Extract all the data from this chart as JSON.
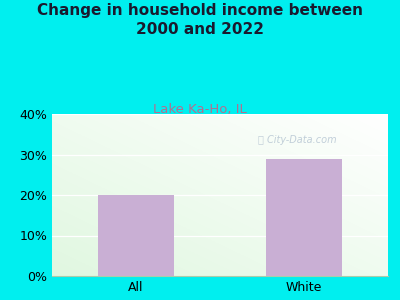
{
  "title": "Change in household income between\n2000 and 2022",
  "subtitle": "Lake Ka-Ho, IL",
  "categories": [
    "All",
    "White"
  ],
  "values": [
    20,
    29
  ],
  "bar_color": "#c9afd4",
  "title_fontsize": 11,
  "subtitle_fontsize": 9.5,
  "subtitle_color": "#b07090",
  "tick_label_fontsize": 9,
  "ylim": [
    0,
    40
  ],
  "yticks": [
    0,
    10,
    20,
    30,
    40
  ],
  "ytick_labels": [
    "0%",
    "10%",
    "20%",
    "30%",
    "40%"
  ],
  "background_outer": "#00efef",
  "watermark": "ⓘ City-Data.com",
  "title_color": "#1a1a2e"
}
